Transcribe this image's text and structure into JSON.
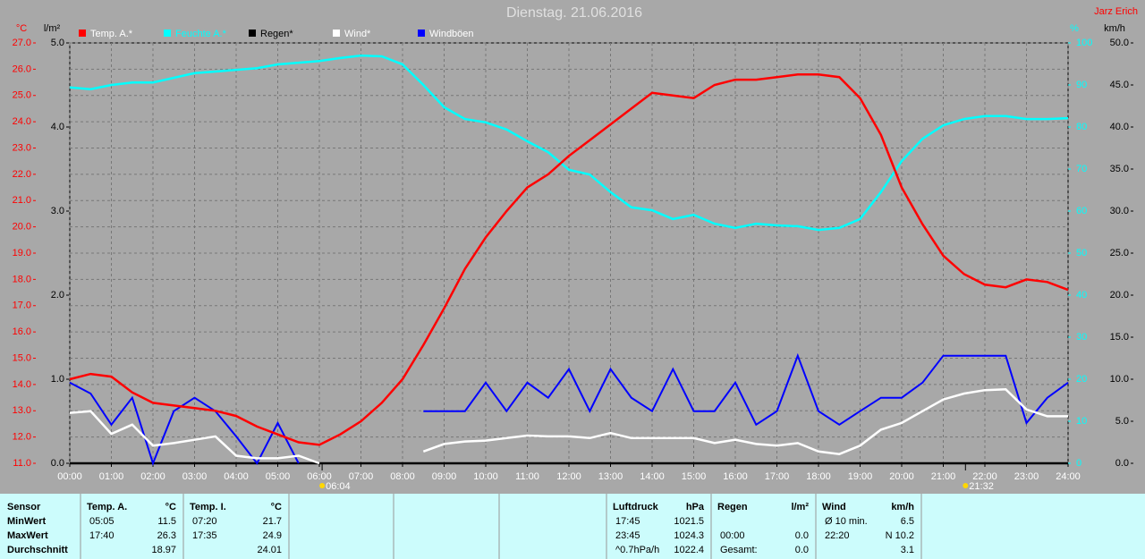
{
  "chart_data": {
    "type": "line",
    "title": "Dienstag. 21.06.2016",
    "author": "Jarz Erich",
    "x": [
      0,
      0.5,
      1,
      1.5,
      2,
      2.5,
      3,
      3.5,
      4,
      4.5,
      5,
      5.5,
      6,
      6.5,
      7,
      7.5,
      8,
      8.5,
      9,
      9.5,
      10,
      10.5,
      11,
      11.5,
      12,
      12.5,
      13,
      13.5,
      14,
      14.5,
      15,
      15.5,
      16,
      16.5,
      17,
      17.5,
      18,
      18.5,
      19,
      19.5,
      20,
      20.5,
      21,
      21.5,
      22,
      22.5,
      23,
      23.5,
      24
    ],
    "xlim": [
      0,
      24
    ],
    "xticks": [
      {
        "value": 0,
        "label": "00:00"
      },
      {
        "value": 1,
        "label": "01:00"
      },
      {
        "value": 2,
        "label": "02:00"
      },
      {
        "value": 3,
        "label": "03:00"
      },
      {
        "value": 4,
        "label": "04:00"
      },
      {
        "value": 5,
        "label": "05:00"
      },
      {
        "value": 6,
        "label": "06:00"
      },
      {
        "value": 7,
        "label": "07:00"
      },
      {
        "value": 8,
        "label": "08:00"
      },
      {
        "value": 9,
        "label": "09:00"
      },
      {
        "value": 10,
        "label": "10:00"
      },
      {
        "value": 11,
        "label": "11:00"
      },
      {
        "value": 12,
        "label": "12:00"
      },
      {
        "value": 13,
        "label": "13:00"
      },
      {
        "value": 14,
        "label": "14:00"
      },
      {
        "value": 15,
        "label": "15:00"
      },
      {
        "value": 16,
        "label": "16:00"
      },
      {
        "value": 17,
        "label": "17:00"
      },
      {
        "value": 18,
        "label": "18:00"
      },
      {
        "value": 19,
        "label": "19:00"
      },
      {
        "value": 20,
        "label": "20:00"
      },
      {
        "value": 21,
        "label": "21:00"
      },
      {
        "value": 22,
        "label": "22:00"
      },
      {
        "value": 23,
        "label": "23:00"
      },
      {
        "value": 24,
        "label": "24:00"
      }
    ],
    "ylabel": "°C",
    "ylim": [
      11,
      27
    ],
    "yticks": [
      {
        "value": 11,
        "label": "11.0"
      },
      {
        "value": 12,
        "label": "12.0"
      },
      {
        "value": 13,
        "label": "13.0"
      },
      {
        "value": 14,
        "label": "14.0"
      },
      {
        "value": 15,
        "label": "15.0"
      },
      {
        "value": 16,
        "label": "16.0"
      },
      {
        "value": 17,
        "label": "17.0"
      },
      {
        "value": 18,
        "label": "18.0"
      },
      {
        "value": 19,
        "label": "19.0"
      },
      {
        "value": 20,
        "label": "20.0"
      },
      {
        "value": 21,
        "label": "21.0"
      },
      {
        "value": 22,
        "label": "22.0"
      },
      {
        "value": 23,
        "label": "23.0"
      },
      {
        "value": 24,
        "label": "24.0"
      },
      {
        "value": 25,
        "label": "25.0"
      },
      {
        "value": 26,
        "label": "26.0"
      },
      {
        "value": 27,
        "label": "27.0"
      }
    ],
    "y2label": "l/m²",
    "y2lim": [
      0,
      5
    ],
    "y2ticks": [
      {
        "value": 0,
        "label": "0.0"
      },
      {
        "value": 1,
        "label": "1.0"
      },
      {
        "value": 2,
        "label": "2.0"
      },
      {
        "value": 3,
        "label": "3.0"
      },
      {
        "value": 4,
        "label": "4.0"
      },
      {
        "value": 5,
        "label": "5.0"
      }
    ],
    "y3label": "%",
    "y3lim": [
      0,
      100
    ],
    "y3ticks": [
      0,
      10,
      20,
      30,
      40,
      50,
      60,
      70,
      80,
      90,
      100
    ],
    "y4label": "km/h",
    "y4lim": [
      0,
      50
    ],
    "y4ticks": [
      {
        "value": 0,
        "label": "0.0"
      },
      {
        "value": 5,
        "label": "5.0"
      },
      {
        "value": 10,
        "label": "10.0"
      },
      {
        "value": 15,
        "label": "15.0"
      },
      {
        "value": 20,
        "label": "20.0"
      },
      {
        "value": 25,
        "label": "25.0"
      },
      {
        "value": 30,
        "label": "30.0"
      },
      {
        "value": 35,
        "label": "35.0"
      },
      {
        "value": 40,
        "label": "40.0"
      },
      {
        "value": 45,
        "label": "45.0"
      },
      {
        "value": 50,
        "label": "50.0"
      }
    ],
    "grid": true,
    "series": [
      {
        "name": "Temp. A.*",
        "color": "#ff0000",
        "axis": "y",
        "values": [
          14.2,
          14.4,
          14.3,
          13.7,
          13.3,
          13.2,
          13.1,
          13.0,
          12.8,
          12.4,
          12.1,
          11.8,
          11.7,
          12.1,
          12.6,
          13.3,
          14.2,
          15.5,
          16.9,
          18.4,
          19.6,
          20.6,
          21.5,
          22.0,
          22.7,
          23.3,
          23.9,
          24.5,
          25.1,
          25.0,
          24.9,
          25.4,
          25.6,
          25.6,
          25.7,
          25.8,
          25.8,
          25.7,
          24.9,
          23.5,
          21.5,
          20.1,
          18.9,
          18.2,
          17.8,
          17.7,
          18.0,
          17.9,
          17.6
        ]
      },
      {
        "name": "Feuchte A.*",
        "color": "#00ffff",
        "axis": "y3",
        "values": [
          89.4,
          89,
          90,
          90.6,
          90.6,
          91.7,
          92.8,
          93.2,
          93.6,
          94,
          94.9,
          95.3,
          95.7,
          96.4,
          97,
          96.8,
          94.9,
          90,
          84.7,
          81.9,
          81.1,
          79.4,
          76.6,
          74,
          69.8,
          68.7,
          64.5,
          60.9,
          60.2,
          58.1,
          59.1,
          57,
          56,
          57,
          56.6,
          56.4,
          55.5,
          56,
          58.1,
          64.5,
          71.9,
          77.2,
          80.4,
          81.9,
          82.6,
          82.6,
          81.9,
          81.9,
          82.1
        ]
      },
      {
        "name": "Regen*",
        "color": "#000000",
        "axis": "y2",
        "values": [
          0,
          0,
          0,
          0,
          0,
          0,
          0,
          0,
          0,
          0,
          0,
          0,
          0,
          0,
          0,
          0,
          0,
          0,
          0,
          0,
          0,
          0,
          0,
          0,
          0,
          0,
          0,
          0,
          0,
          0,
          0,
          0,
          0,
          0,
          0,
          0,
          0,
          0,
          0,
          0,
          0,
          0,
          0,
          0,
          0,
          0,
          0,
          0,
          0
        ]
      },
      {
        "name": "Wind*",
        "color": "#ffffff",
        "axis": "y4",
        "values": [
          6.0,
          6.2,
          3.5,
          4.6,
          2.1,
          2.4,
          2.8,
          3.2,
          0.9,
          0.6,
          0.6,
          0.9,
          0,
          null,
          null,
          null,
          null,
          1.4,
          2.3,
          2.6,
          2.7,
          3.0,
          3.3,
          3.2,
          3.2,
          3.0,
          3.6,
          3.0,
          3.0,
          3.0,
          3.0,
          2.4,
          2.8,
          2.3,
          2.1,
          2.4,
          1.4,
          1.1,
          2.1,
          4.0,
          4.8,
          6.2,
          7.6,
          8.3,
          8.7,
          8.8,
          6.4,
          5.6,
          5.6
        ]
      },
      {
        "name": "Windböen",
        "color": "#0000ff",
        "axis": "y4",
        "values": [
          9.6,
          8.3,
          4.6,
          7.8,
          0,
          6.2,
          7.8,
          6.2,
          3.2,
          0,
          4.8,
          0,
          null,
          null,
          null,
          null,
          null,
          6.2,
          6.2,
          6.2,
          9.6,
          6.2,
          9.6,
          7.8,
          11.2,
          6.2,
          11.2,
          7.8,
          6.2,
          11.2,
          6.2,
          6.2,
          9.6,
          4.6,
          6.2,
          12.8,
          6.2,
          4.6,
          6.2,
          7.8,
          7.8,
          9.6,
          12.8,
          12.8,
          12.8,
          12.8,
          4.8,
          7.8,
          9.6
        ]
      }
    ],
    "annotations": [
      {
        "x": 6.0667,
        "label": "06:04"
      },
      {
        "x": 21.5333,
        "label": "21:32"
      }
    ]
  },
  "stats": {
    "header": "Sensor",
    "row_labels": [
      "MinWert",
      "MaxWert",
      "Durchschnitt"
    ],
    "blocks": [
      {
        "name": "Temp. A.",
        "unit": "°C",
        "rows": [
          {
            "time": "05:05",
            "value": "11.5"
          },
          {
            "time": "17:40",
            "value": "26.3"
          },
          {
            "value": "18.97"
          }
        ]
      },
      {
        "name": "Temp. I.",
        "unit": "°C",
        "rows": [
          {
            "time": "07:20",
            "value": "21.7"
          },
          {
            "time": "17:35",
            "value": "24.9"
          },
          {
            "value": "24.01"
          }
        ]
      },
      {
        "name": "Luftdruck",
        "unit": "hPa",
        "rows": [
          {
            "time": "17:45",
            "value": "1021.5"
          },
          {
            "time": "23:45",
            "value": "1024.3"
          },
          {
            "time": "^0.7hPa/h",
            "value": "1022.4"
          }
        ]
      },
      {
        "name": "Regen",
        "unit": "l/m²",
        "rows": [
          null,
          {
            "time": "00:00",
            "value": "0.0"
          },
          {
            "time": "Gesamt:",
            "value": "0.0"
          }
        ]
      },
      {
        "name": "Wind",
        "unit": "km/h",
        "rows": [
          {
            "time": "Ø 10 min.",
            "value": "6.5"
          },
          {
            "time": "22:20",
            "value": "N 10.2"
          },
          {
            "value": "3.1"
          }
        ]
      }
    ]
  }
}
